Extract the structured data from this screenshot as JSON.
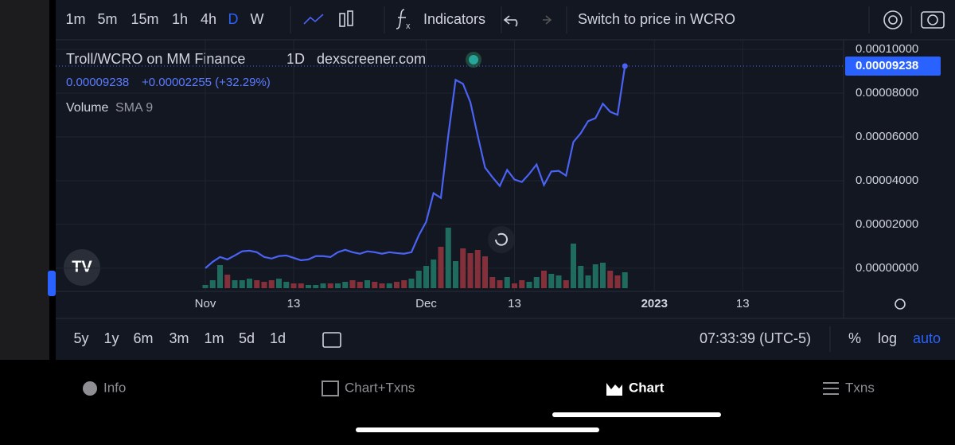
{
  "toolbar": {
    "intervals": [
      "1m",
      "5m",
      "15m",
      "1h",
      "4h",
      "D",
      "W"
    ],
    "indicators": "Indicators",
    "switch": "Switch to price in WCRO"
  },
  "chart_data": {
    "type": "line",
    "title": "Troll/WCRO on MM Finance",
    "interval": "1D",
    "source": "dexscreener.com",
    "change_label": "+0.00002255 (+32.29%)",
    "volume_label": "Volume",
    "volume_sma": "SMA 9",
    "last_price": {
      "value": 9.238e-05,
      "label": "0.00009238"
    },
    "x": [
      "Nov 1",
      "Nov 2",
      "Nov 3",
      "Nov 4",
      "Nov 5",
      "Nov 6",
      "Nov 7",
      "Nov 8",
      "Nov 9",
      "Nov 10",
      "Nov 11",
      "Nov 12",
      "Nov 13",
      "Nov 14",
      "Nov 15",
      "Nov 16",
      "Nov 17",
      "Nov 18",
      "Nov 19",
      "Nov 20",
      "Nov 21",
      "Nov 22",
      "Nov 23",
      "Nov 24",
      "Nov 25",
      "Nov 26",
      "Nov 27",
      "Nov 28",
      "Nov 29",
      "Nov 30",
      "Dec 1",
      "Dec 2",
      "Dec 3",
      "Dec 4",
      "Dec 5",
      "Dec 6",
      "Dec 7",
      "Dec 8",
      "Dec 9",
      "Dec 10",
      "Dec 11",
      "Dec 12",
      "Dec 13",
      "Dec 14",
      "Dec 15",
      "Dec 16",
      "Dec 17",
      "Dec 18",
      "Dec 19",
      "Dec 20",
      "Dec 21",
      "Dec 22",
      "Dec 23",
      "Dec 24",
      "Dec 25",
      "Dec 26",
      "Dec 27",
      "Dec 28"
    ],
    "series": [
      {
        "color": "#4a63f5",
        "values": [
          0,
          2.9e-06,
          5.1e-06,
          4e-06,
          5.8e-06,
          7.7e-06,
          8e-06,
          7.3e-06,
          5.1e-06,
          4.4e-06,
          5.5e-06,
          5.8e-06,
          4.7e-06,
          3.6e-06,
          4e-06,
          5.5e-06,
          5.5e-06,
          5.1e-06,
          7.3e-06,
          8.4e-06,
          7.3e-06,
          6.6e-06,
          7.7e-06,
          7.3e-06,
          6.6e-06,
          7.3e-06,
          6.9e-06,
          6.6e-06,
          7.3e-06,
          1.5e-05,
          2.12e-05,
          3.43e-05,
          3.21e-05,
          6.06e-05,
          8.61e-05,
          8.43e-05,
          7.59e-05,
          6.06e-05,
          4.6e-05,
          4.16e-05,
          3.76e-05,
          4.49e-05,
          4.05e-05,
          3.94e-05,
          4.31e-05,
          4.74e-05,
          3.8e-05,
          4.42e-05,
          4.45e-05,
          4.23e-05,
          5.77e-05,
          6.17e-05,
          6.72e-05,
          6.86e-05,
          7.52e-05,
          7.15e-05,
          7.01e-05,
          9.238e-05
        ]
      }
    ],
    "volume": {
      "up_color": "#1f6b5e",
      "down_color": "#84303a",
      "ylim": [
        0,
        100
      ],
      "values": [
        4,
        10,
        29,
        17,
        10,
        10,
        12,
        10,
        8,
        10,
        12,
        8,
        6,
        6,
        4,
        4,
        6,
        6,
        6,
        8,
        10,
        8,
        10,
        8,
        6,
        6,
        8,
        10,
        12,
        22,
        28,
        36,
        52,
        76,
        34,
        50,
        44,
        48,
        40,
        14,
        10,
        14,
        6,
        10,
        8,
        14,
        22,
        18,
        16,
        10,
        56,
        28,
        16,
        30,
        32,
        22,
        16,
        20
      ]
    },
    "ylim": [
      -1.06e-05,
      0.0001044
    ],
    "yticks": [
      {
        "value": 0,
        "label": "0.00000000"
      },
      {
        "value": 2e-05,
        "label": "0.00002000"
      },
      {
        "value": 4e-05,
        "label": "0.00004000"
      },
      {
        "value": 6e-05,
        "label": "0.00006000"
      },
      {
        "value": 8e-05,
        "label": "0.00008000"
      },
      {
        "value": 0.0001,
        "label": "0.00010000"
      }
    ],
    "xticks": [
      {
        "value": "Nov 1",
        "label": "Nov"
      },
      {
        "value": "Nov 13",
        "label": "13"
      },
      {
        "value": "Dec 1",
        "label": "Dec"
      },
      {
        "value": "Dec 13",
        "label": "13"
      },
      {
        "value": "Jan 1",
        "label": "2023"
      },
      {
        "value": "Jan 13",
        "label": "13"
      }
    ],
    "grid": true
  },
  "range_bar": {
    "ranges": [
      "5y",
      "1y",
      "6m",
      "3m",
      "1m",
      "5d",
      "1d"
    ],
    "time": "07:33:39 (UTC-5)",
    "percent": "%",
    "log": "log",
    "auto": "auto"
  },
  "nav": {
    "info": "Info",
    "chart_txns": "Chart+Txns",
    "chart": "Chart",
    "txns": "Txns"
  }
}
